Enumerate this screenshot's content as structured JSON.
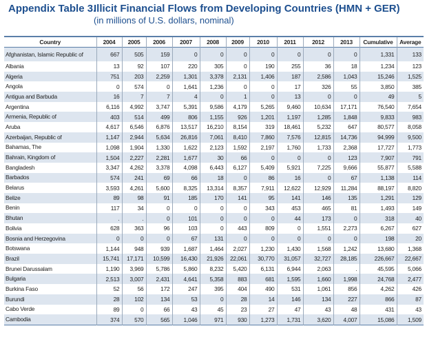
{
  "title": {
    "label": "Appendix Table 3.",
    "text": "Illicit Financial Flows from Developing Countries (HMN + GER)"
  },
  "subtitle": "(in millions of U.S. dollars, nominal)",
  "columns": [
    "Country",
    "2004",
    "2005",
    "2006",
    "2007",
    "2008",
    "2009",
    "2010",
    "2011",
    "2012",
    "2013",
    "Cumulative",
    "Average"
  ],
  "rows": [
    [
      "Afghanistan, Islamic Republic of",
      "667",
      "505",
      "159",
      "0",
      "0",
      "0",
      "0",
      "0",
      "0",
      "0",
      "1,331",
      "133"
    ],
    [
      "Albania",
      "13",
      "92",
      "107",
      "220",
      "305",
      "0",
      "190",
      "255",
      "36",
      "18",
      "1,234",
      "123"
    ],
    [
      "Algeria",
      "751",
      "203",
      "2,259",
      "1,301",
      "3,378",
      "2,131",
      "1,406",
      "187",
      "2,586",
      "1,043",
      "15,246",
      "1,525"
    ],
    [
      "Angola",
      "0",
      "574",
      "0",
      "1,641",
      "1,236",
      "0",
      "0",
      "17",
      "326",
      "55",
      "3,850",
      "385"
    ],
    [
      "Antigua and Barbuda",
      "16",
      "7",
      "7",
      "4",
      "0",
      "1",
      "0",
      "13",
      "0",
      "0",
      "49",
      "5"
    ],
    [
      "Argentina",
      "6,116",
      "4,992",
      "3,747",
      "5,391",
      "9,586",
      "4,179",
      "5,265",
      "9,460",
      "10,634",
      "17,171",
      "76,540",
      "7,654"
    ],
    [
      "Armenia, Republic of",
      "403",
      "514",
      "499",
      "806",
      "1,155",
      "926",
      "1,201",
      "1,197",
      "1,285",
      "1,848",
      "9,833",
      "983"
    ],
    [
      "Aruba",
      "4,617",
      "6,546",
      "6,876",
      "13,517",
      "16,210",
      "8,154",
      "319",
      "18,461",
      "5,232",
      "647",
      "80,577",
      "8,058"
    ],
    [
      "Azerbaijan, Republic of",
      "1,147",
      "2,944",
      "5,634",
      "26,816",
      "7,061",
      "8,410",
      "7,860",
      "7,576",
      "12,815",
      "14,736",
      "94,999",
      "9,500"
    ],
    [
      "Bahamas, The",
      "1,098",
      "1,904",
      "1,330",
      "1,622",
      "2,123",
      "1,592",
      "2,197",
      "1,760",
      "1,733",
      "2,368",
      "17,727",
      "1,773"
    ],
    [
      "Bahrain, Kingdom of",
      "1,504",
      "2,227",
      "2,281",
      "1,677",
      "30",
      "66",
      "0",
      "0",
      "0",
      "123",
      "7,907",
      "791"
    ],
    [
      "Bangladesh",
      "3,347",
      "4,262",
      "3,378",
      "4,098",
      "6,443",
      "6,127",
      "5,409",
      "5,921",
      "7,225",
      "9,666",
      "55,877",
      "5,588"
    ],
    [
      "Barbados",
      "574",
      "241",
      "69",
      "66",
      "18",
      "0",
      "86",
      "16",
      "0",
      "67",
      "1,138",
      "114"
    ],
    [
      "Belarus",
      "3,593",
      "4,261",
      "5,600",
      "8,325",
      "13,314",
      "8,357",
      "7,911",
      "12,622",
      "12,929",
      "11,284",
      "88,197",
      "8,820"
    ],
    [
      "Belize",
      "89",
      "98",
      "91",
      "185",
      "170",
      "141",
      "95",
      "141",
      "146",
      "135",
      "1,291",
      "129"
    ],
    [
      "Benin",
      "117",
      "34",
      "0",
      "0",
      "0",
      "0",
      "343",
      "453",
      "465",
      "81",
      "1,493",
      "149"
    ],
    [
      "Bhutan",
      ".",
      ".",
      "0",
      "101",
      "0",
      "0",
      "0",
      "44",
      "173",
      "0",
      "318",
      "40"
    ],
    [
      "Bolivia",
      "628",
      "363",
      "96",
      "103",
      "0",
      "443",
      "809",
      "0",
      "1,551",
      "2,273",
      "6,267",
      "627"
    ],
    [
      "Bosnia and Herzegovina",
      "0",
      "0",
      "0",
      "67",
      "131",
      "0",
      "0",
      "0",
      "0",
      "0",
      "198",
      "20"
    ],
    [
      "Botswana",
      "1,144",
      "948",
      "939",
      "1,687",
      "1,464",
      "2,027",
      "1,230",
      "1,430",
      "1,568",
      "1,242",
      "13,680",
      "1,368"
    ],
    [
      "Brazil",
      "15,741",
      "17,171",
      "10,599",
      "16,430",
      "21,926",
      "22,061",
      "30,770",
      "31,057",
      "32,727",
      "28,185",
      "226,667",
      "22,667"
    ],
    [
      "Brunei Darussalam",
      "1,190",
      "3,969",
      "5,786",
      "5,860",
      "8,232",
      "5,420",
      "6,131",
      "6,944",
      "2,063",
      ".",
      "45,595",
      "5,066"
    ],
    [
      "Bulgaria",
      "2,513",
      "3,007",
      "2,431",
      "4,641",
      "5,358",
      "883",
      "681",
      "1,595",
      "1,660",
      "1,998",
      "24,768",
      "2,477"
    ],
    [
      "Burkina Faso",
      "52",
      "56",
      "172",
      "247",
      "395",
      "404",
      "490",
      "531",
      "1,061",
      "856",
      "4,262",
      "426"
    ],
    [
      "Burundi",
      "28",
      "102",
      "134",
      "53",
      "0",
      "28",
      "14",
      "146",
      "134",
      "227",
      "866",
      "87"
    ],
    [
      "Cabo Verde",
      "89",
      "0",
      "66",
      "43",
      "45",
      "23",
      "27",
      "47",
      "43",
      "48",
      "431",
      "43"
    ],
    [
      "Cambodia",
      "374",
      "570",
      "565",
      "1,046",
      "971",
      "930",
      "1,273",
      "1,731",
      "3,620",
      "4,007",
      "15,086",
      "1,509"
    ]
  ]
}
